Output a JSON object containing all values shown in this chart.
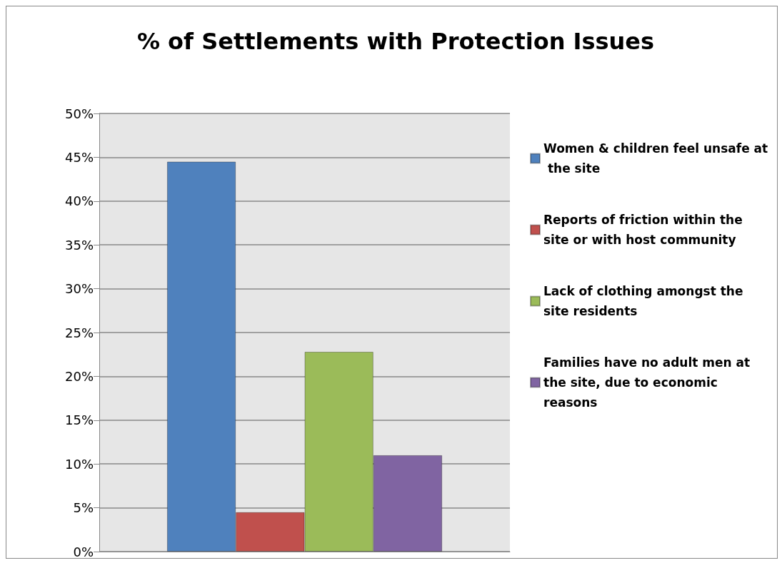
{
  "chart_data": {
    "type": "bar",
    "title": "% of Settlements with Protection Issues",
    "categories": [
      null
    ],
    "series": [
      {
        "name": "Women & children feel unsafe at the site",
        "color": "#4f81bd",
        "values": [
          44.5
        ]
      },
      {
        "name": "Reports of friction within the site or with host community",
        "color": "#c0504d",
        "values": [
          4.5
        ]
      },
      {
        "name": "Lack of clothing amongst the site residents",
        "color": "#9bbb59",
        "values": [
          22.8
        ]
      },
      {
        "name": "Families have no adult men at the site, due to economic reasons",
        "color": "#8064a2",
        "values": [
          11.0
        ]
      }
    ],
    "ylim": [
      0,
      50
    ],
    "yticks": [
      {
        "value": 0,
        "label": "0%"
      },
      {
        "value": 5,
        "label": "5%"
      },
      {
        "value": 10,
        "label": "10%"
      },
      {
        "value": 15,
        "label": "15%"
      },
      {
        "value": 20,
        "label": "20%"
      },
      {
        "value": 25,
        "label": "25%"
      },
      {
        "value": 30,
        "label": "30%"
      },
      {
        "value": 35,
        "label": "35%"
      },
      {
        "value": 40,
        "label": "40%"
      },
      {
        "value": 45,
        "label": "45%"
      },
      {
        "value": 50,
        "label": "50%"
      }
    ],
    "grid": "y",
    "legend": "right"
  }
}
